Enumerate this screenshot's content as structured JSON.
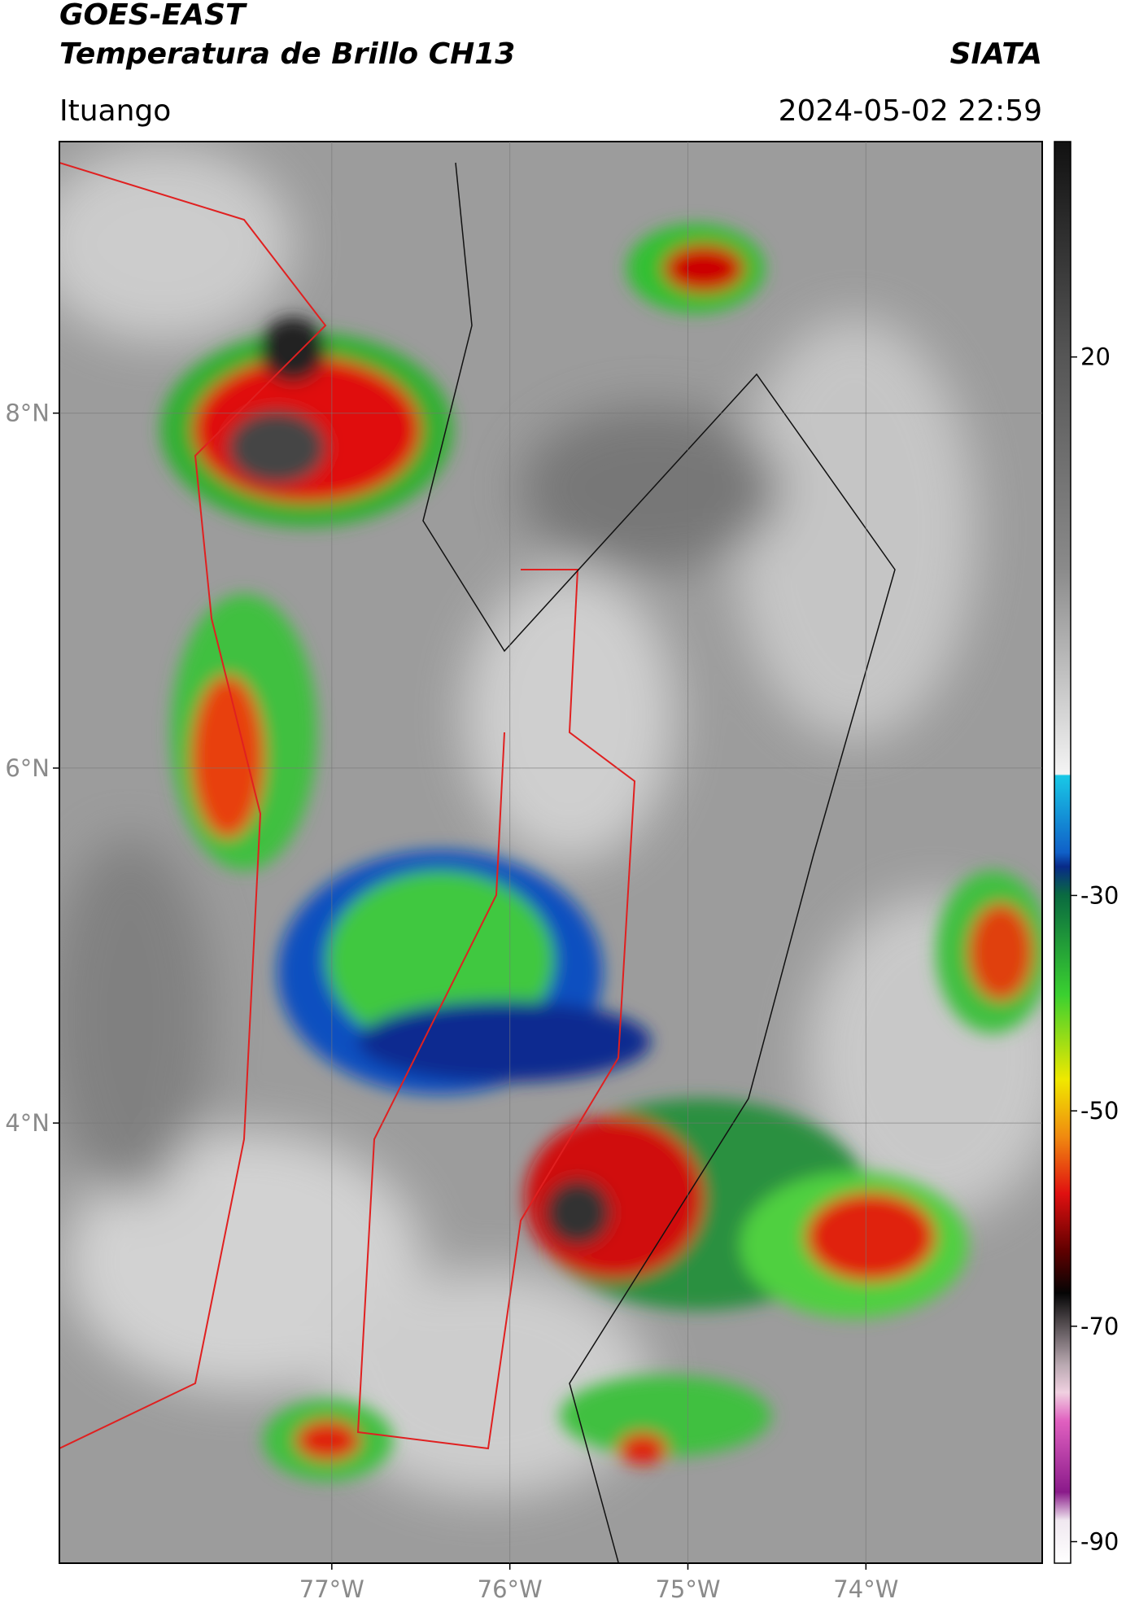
{
  "header": {
    "title": "GOES-EAST",
    "subtitle": "Temperatura de Brillo CH13",
    "source": "SIATA",
    "location": "Ituango",
    "timestamp": "2024-05-02 22:59"
  },
  "map": {
    "lonlim": [
      -78.53,
      -73.01
    ],
    "latlim": [
      1.52,
      9.53
    ],
    "lat_ticks": [
      {
        "value": 8,
        "label": "8°N"
      },
      {
        "value": 6,
        "label": "6°N"
      },
      {
        "value": 4,
        "label": "4°N"
      }
    ],
    "lon_ticks": [
      {
        "value": -77,
        "label": "77°W"
      },
      {
        "value": -76,
        "label": "76°W"
      },
      {
        "value": -75,
        "label": "75°W"
      },
      {
        "value": -74,
        "label": "74°W"
      }
    ]
  },
  "colorbar": {
    "lim": [
      -92,
      40
    ],
    "ticks": [
      20,
      -30,
      -50,
      -70,
      -90
    ]
  }
}
